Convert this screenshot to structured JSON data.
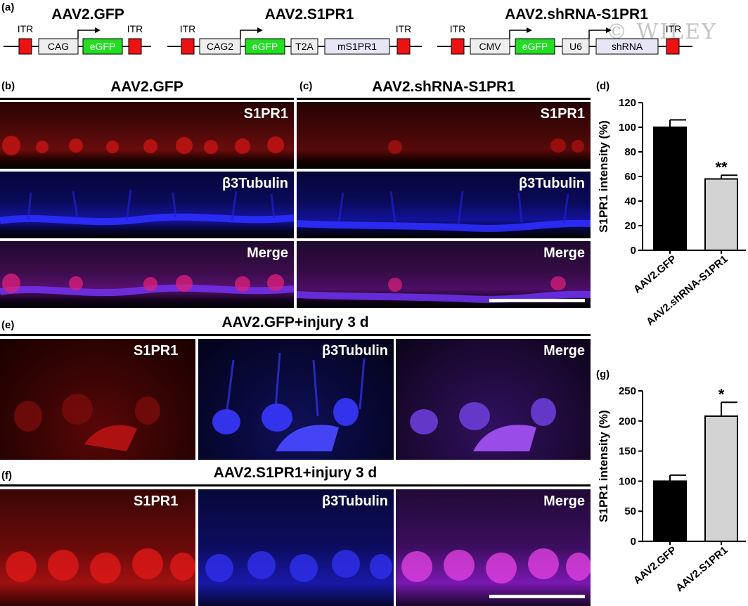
{
  "panel_labels": {
    "a": "(a)",
    "b": "(b)",
    "c": "(c)",
    "d": "(d)",
    "e": "(e)",
    "f": "(f)",
    "g": "(g)"
  },
  "watermark": "© WILEY",
  "constructs": [
    {
      "title": "AAV2.GFP",
      "elements": [
        {
          "label": "ITR",
          "type": "itr"
        },
        {
          "label": "CAG",
          "type": "promoter"
        },
        {
          "label": "eGFP",
          "type": "gfp"
        },
        {
          "label": "ITR",
          "type": "itr"
        }
      ]
    },
    {
      "title": "AAV2.S1PR1",
      "elements": [
        {
          "label": "",
          "type": "itr"
        },
        {
          "label": "CAG2",
          "type": "promoter"
        },
        {
          "label": "eGFP",
          "type": "gfp"
        },
        {
          "label": "T2A",
          "type": "promoter"
        },
        {
          "label": "mS1PR1",
          "type": "gene"
        },
        {
          "label": "ITR",
          "type": "itr"
        }
      ]
    },
    {
      "title": "AAV2.shRNA-S1PR1",
      "elements": [
        {
          "label": "ITR",
          "type": "itr"
        },
        {
          "label": "CMV",
          "type": "promoter"
        },
        {
          "label": "eGFP",
          "type": "gfp"
        },
        {
          "label": "U6",
          "type": "promoter"
        },
        {
          "label": "shRNA",
          "type": "gene"
        },
        {
          "label": "ITR",
          "type": "itr"
        }
      ]
    }
  ],
  "construct_extra_itr": "ITR",
  "panel_b": {
    "title": "AAV2.GFP",
    "rows": [
      "S1PR1",
      "β3Tubulin",
      "Merge"
    ]
  },
  "panel_c": {
    "title": "AAV2.shRNA-S1PR1",
    "rows": [
      "S1PR1",
      "β3Tubulin",
      "Merge"
    ]
  },
  "panel_e": {
    "title": "AAV2.GFP+injury 3 d",
    "cols": [
      "S1PR1",
      "β3Tubulin",
      "Merge"
    ]
  },
  "panel_f": {
    "title": "AAV2.S1PR1+injury 3 d",
    "cols": [
      "S1PR1",
      "β3Tubulin",
      "Merge"
    ]
  },
  "colors": {
    "red": "#e01515",
    "blue": "#2a2aff",
    "magenta": "#c040e0",
    "gfp": "#22dd22",
    "itr": "#ee1111",
    "gene_box": "#e6e6f6",
    "black": "#000000",
    "grey_bar": "#d3d3d3"
  },
  "chart_data": [
    {
      "type": "bar",
      "panel": "(d)",
      "categories": [
        "AAV2.GFP",
        "AAV2.shRNA-S1PR1"
      ],
      "values": [
        100,
        58
      ],
      "errors": [
        6,
        3
      ],
      "bar_colors": [
        "#000000",
        "#d3d3d3"
      ],
      "significance": [
        "",
        "**"
      ],
      "ylabel": "S1PR1 intensity (%)",
      "xlabel": "",
      "ylim": [
        0,
        120
      ],
      "yticks": [
        0,
        20,
        40,
        60,
        80,
        100,
        120
      ]
    },
    {
      "type": "bar",
      "panel": "(g)",
      "categories": [
        "AAV2.GFP",
        "AAV2.S1PR1"
      ],
      "values": [
        100,
        208
      ],
      "errors": [
        10,
        23
      ],
      "bar_colors": [
        "#000000",
        "#d3d3d3"
      ],
      "significance": [
        "",
        "*"
      ],
      "ylabel": "S1PR1 intensity (%)",
      "xlabel": "",
      "ylim": [
        0,
        250
      ],
      "yticks": [
        0,
        50,
        100,
        150,
        200,
        250
      ]
    }
  ]
}
